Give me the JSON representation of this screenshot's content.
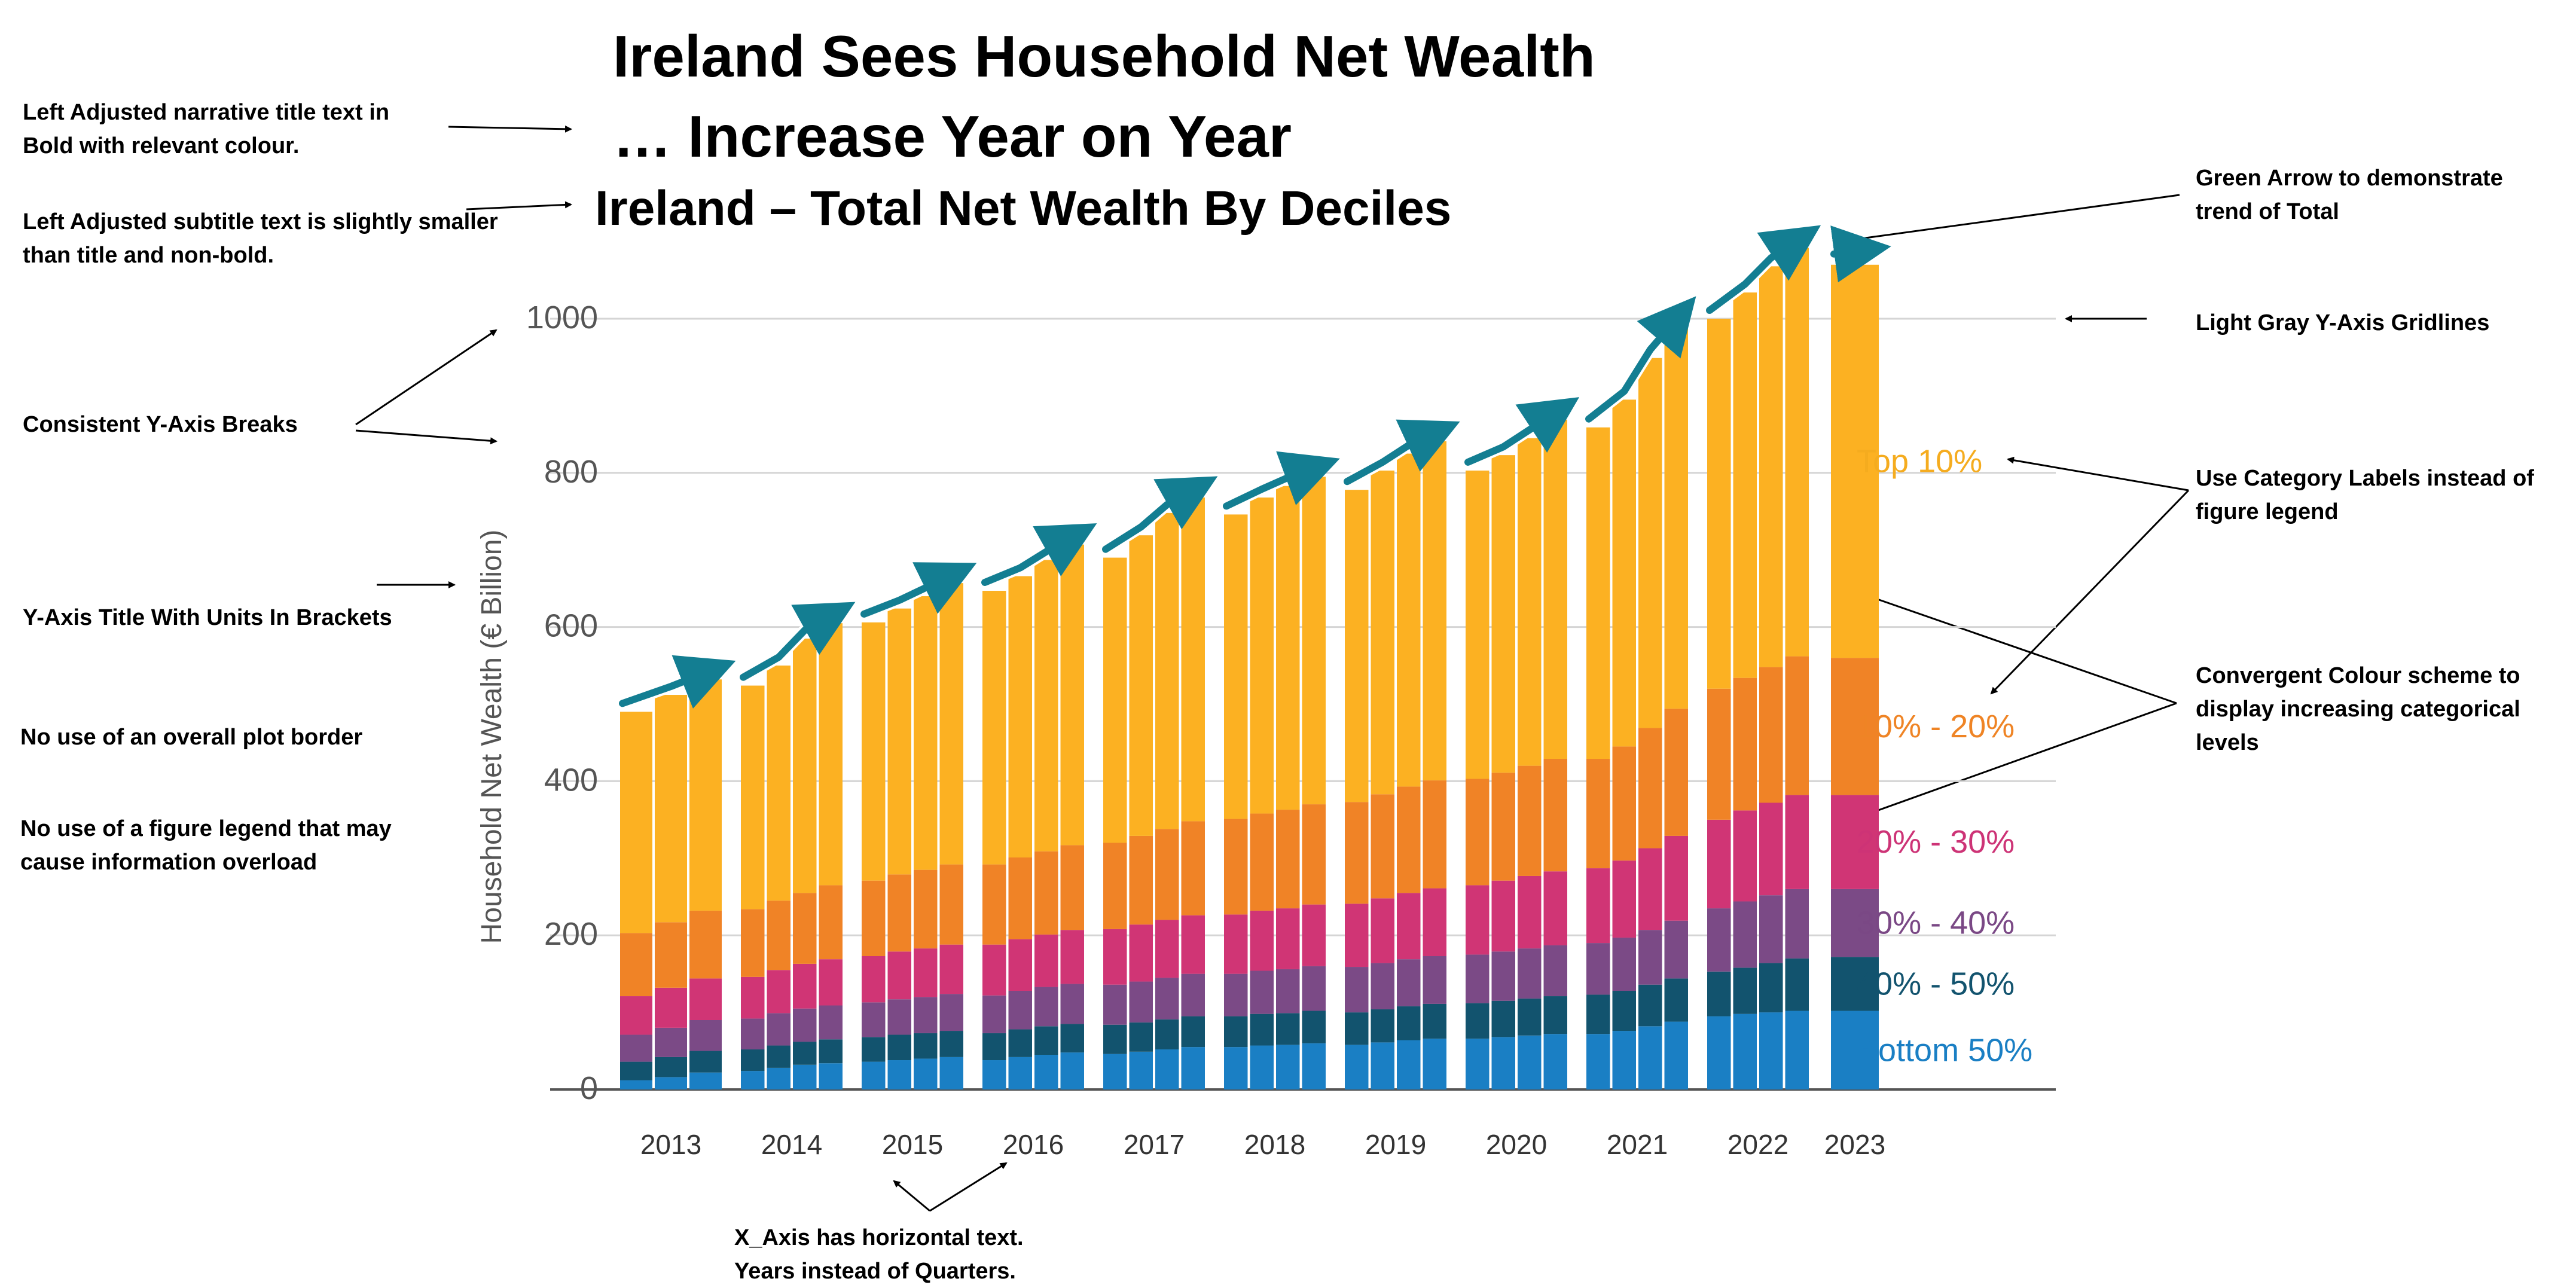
{
  "title": {
    "line1": "Ireland Sees Household Net Wealth",
    "line2": "… Increase Year on Year"
  },
  "subtitle": "Ireland – Total Net Wealth By Deciles",
  "annotations": {
    "title_note": [
      "Left Adjusted narrative title text in",
      "Bold with relevant colour."
    ],
    "subtitle_note": [
      "Left Adjusted subtitle text is slightly smaller",
      "than title and non-bold."
    ],
    "ybreaks_note": [
      "Consistent Y-Axis Breaks"
    ],
    "ytitle_note": [
      "Y-Axis Title With Units In Brackets"
    ],
    "border_note": [
      "No use of an overall plot border"
    ],
    "legend_note": [
      "No use of a figure legend that may",
      "cause information overload"
    ],
    "xaxis_note": [
      "X_Axis has horizontal text.",
      "Years instead of Quarters."
    ],
    "arrow_note": [
      "Green Arrow to demonstrate",
      "trend of Total"
    ],
    "grid_note": [
      "Light Gray Y-Axis  Gridlines"
    ],
    "catlabel_note": [
      "Use Category Labels instead of",
      "figure legend"
    ],
    "colour_note": [
      "Convergent Colour scheme to",
      "display increasing categorical",
      "levels"
    ]
  },
  "chart_data": {
    "type": "bar",
    "stacked": true,
    "ylabel": "Household Net Wealth (€ Billion)",
    "ylim": [
      0,
      1000
    ],
    "yticks": [
      0,
      200,
      400,
      600,
      800,
      1000
    ],
    "grid": "y",
    "years": [
      "2013",
      "2014",
      "2015",
      "2016",
      "2017",
      "2018",
      "2019",
      "2020",
      "2021",
      "2022",
      "2023"
    ],
    "quarters_per_year": [
      3,
      4,
      4,
      4,
      4,
      4,
      4,
      4,
      4,
      4,
      1
    ],
    "series": [
      {
        "name": "Bottom 50%",
        "color": "#1a7fc4",
        "values": [
          12,
          16,
          22,
          24,
          28,
          32,
          34,
          36,
          38,
          40,
          42,
          38,
          42,
          45,
          48,
          46,
          49,
          52,
          55,
          55,
          57,
          58,
          60,
          58,
          61,
          64,
          66,
          66,
          68,
          70,
          72,
          72,
          76,
          82,
          88,
          95,
          98,
          100,
          102,
          102
        ]
      },
      {
        "name": "40% - 50%",
        "color": "#12536e",
        "values": [
          24,
          26,
          28,
          28,
          29,
          30,
          31,
          32,
          33,
          33,
          34,
          35,
          36,
          37,
          37,
          38,
          38,
          39,
          40,
          40,
          41,
          41,
          42,
          42,
          43,
          44,
          45,
          46,
          47,
          48,
          49,
          51,
          52,
          54,
          56,
          58,
          60,
          64,
          68,
          70
        ]
      },
      {
        "name": "30% - 40%",
        "color": "#7b4a86",
        "values": [
          35,
          38,
          40,
          40,
          42,
          43,
          44,
          45,
          46,
          47,
          48,
          49,
          50,
          51,
          52,
          52,
          53,
          54,
          55,
          55,
          56,
          57,
          58,
          59,
          60,
          61,
          62,
          63,
          64,
          65,
          66,
          67,
          69,
          71,
          75,
          82,
          86,
          88,
          90,
          88
        ]
      },
      {
        "name": "20% - 30%",
        "color": "#d03575",
        "values": [
          50,
          52,
          54,
          54,
          56,
          58,
          60,
          60,
          62,
          63,
          64,
          66,
          67,
          68,
          70,
          72,
          74,
          75,
          76,
          77,
          78,
          79,
          80,
          82,
          84,
          86,
          88,
          90,
          92,
          94,
          96,
          97,
          100,
          106,
          110,
          115,
          118,
          120,
          122,
          122
        ]
      },
      {
        "name": "10% - 20%",
        "color": "#f08326",
        "values": [
          82,
          85,
          88,
          88,
          90,
          92,
          96,
          98,
          100,
          102,
          104,
          104,
          106,
          108,
          110,
          112,
          115,
          118,
          122,
          124,
          126,
          128,
          130,
          132,
          135,
          138,
          140,
          138,
          140,
          143,
          146,
          142,
          148,
          156,
          165,
          170,
          172,
          176,
          180,
          178
        ]
      },
      {
        "name": "Top 10%",
        "color": "#fcb122",
        "values": [
          287,
          295,
          300,
          290,
          305,
          330,
          340,
          335,
          345,
          355,
          365,
          355,
          365,
          378,
          390,
          370,
          390,
          410,
          420,
          395,
          410,
          420,
          425,
          405,
          420,
          432,
          440,
          400,
          412,
          425,
          440,
          430,
          450,
          480,
          500,
          480,
          500,
          520,
          530,
          510
        ]
      }
    ],
    "label_colors": {
      "Top 10%": "#f5ac1f",
      "10% - 20%": "#ef8425",
      "20% - 30%": "#cd3376",
      "30% - 40%": "#7a4885",
      "40% - 50%": "#12536e",
      "Bottom 50%": "#1a7fc4"
    },
    "trend_arrow_color": "#137e92",
    "gridline_color": "#d5d5d5"
  }
}
